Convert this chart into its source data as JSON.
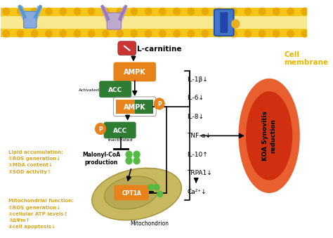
{
  "bg_color": "#ffffff",
  "membrane_color": "#F5C518",
  "cell_membrane_label": "Cell\nmembrane",
  "cell_membrane_label_color": "#E8B800",
  "l_carnitine_label": "L-carnitine",
  "ampk_orange_color": "#E8821A",
  "ampk_green_color": "#2E7D32",
  "acc_color": "#2E7D32",
  "p_color": "#E8821A",
  "malonyl_label": "Malonyl-CoA\nproduction",
  "mitochondrion_label": "Mitochondrion",
  "lipid_text": "Lipid accumulation:\n①ROS generation↓\n②MDA content↓\n③SOD activity↑",
  "mito_text": "Mitochondrial function:\n①ROS generation↓\n②cellular ATP levels↑\n③ΔΨm↑\n④cell apoptosis↓",
  "annotations_color": "#DAA520",
  "cytokines": [
    "IL-1β↓",
    "IL-6↓",
    "IL-8↓",
    "TNF-α↓",
    "IL-10↑",
    "TRPA1↓",
    "Ca²⁺↓"
  ],
  "koa_label": "KOA Synovitis\nreduction",
  "koa_color_inner": "#D03010",
  "koa_color_outer": "#E86030",
  "activated_label": "Activated",
  "inactivated_label": "Inactivated"
}
